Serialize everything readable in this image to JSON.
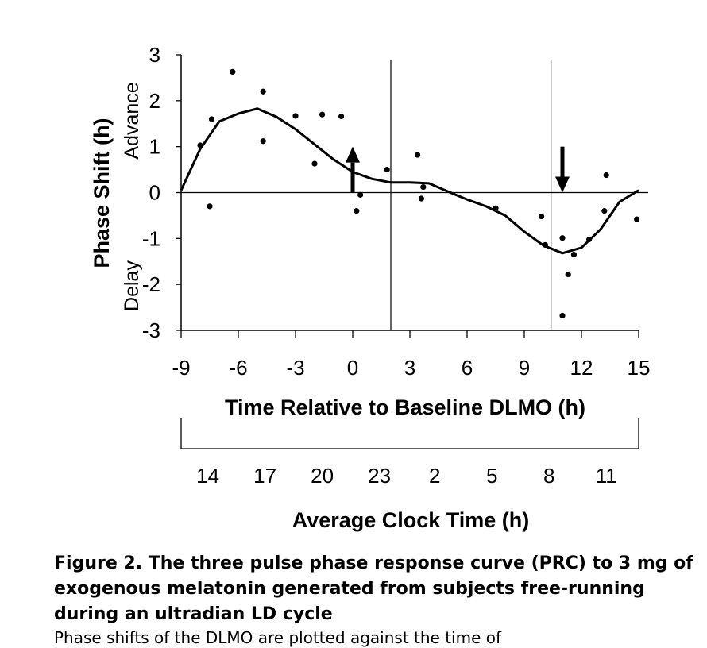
{
  "chart_data": {
    "type": "scatter",
    "xlabel": "Time Relative to Baseline DLMO (h)",
    "ylabel": "Phase Shift (h)",
    "ylabel_upper": "Advance",
    "ylabel_lower": "Delay",
    "secondary_xlabel": "Average Clock Time (h)",
    "xlim": [
      -9,
      15
    ],
    "ylim": [
      -3,
      3
    ],
    "xticks": [
      -9,
      -6,
      -3,
      0,
      3,
      6,
      9,
      12,
      15
    ],
    "yticks": [
      3,
      2,
      1,
      0,
      -1,
      -2,
      -3
    ],
    "secondary_xticks": [
      {
        "label": "14",
        "x": -7.6
      },
      {
        "label": "17",
        "x": -4.6
      },
      {
        "label": "20",
        "x": -1.6
      },
      {
        "label": "23",
        "x": 1.4
      },
      {
        "label": "2",
        "x": 4.3
      },
      {
        "label": "5",
        "x": 7.3
      },
      {
        "label": "8",
        "x": 10.3
      },
      {
        "label": "11",
        "x": 13.3
      }
    ],
    "vertical_lines_x": [
      2.0,
      10.4
    ],
    "arrows": [
      {
        "x": 0.0,
        "direction": "up",
        "from_y": 0.0,
        "to_y": 1.0
      },
      {
        "x": 11.0,
        "direction": "down",
        "from_y": 1.0,
        "to_y": 0.0
      }
    ],
    "points": [
      {
        "x": -8.0,
        "y": 1.03
      },
      {
        "x": -7.4,
        "y": 1.6
      },
      {
        "x": -7.5,
        "y": -0.3
      },
      {
        "x": -6.3,
        "y": 2.63
      },
      {
        "x": -4.7,
        "y": 2.2
      },
      {
        "x": -4.7,
        "y": 1.12
      },
      {
        "x": -3.0,
        "y": 1.67
      },
      {
        "x": -2.0,
        "y": 0.63
      },
      {
        "x": -1.6,
        "y": 1.7
      },
      {
        "x": -0.6,
        "y": 1.66
      },
      {
        "x": 0.2,
        "y": -0.4
      },
      {
        "x": 0.4,
        "y": -0.05
      },
      {
        "x": 1.8,
        "y": 0.5
      },
      {
        "x": 3.4,
        "y": 0.82
      },
      {
        "x": 3.7,
        "y": 0.12
      },
      {
        "x": 3.6,
        "y": -0.13
      },
      {
        "x": 7.5,
        "y": -0.34
      },
      {
        "x": 9.9,
        "y": -0.52
      },
      {
        "x": 10.1,
        "y": -1.14
      },
      {
        "x": 11.0,
        "y": -0.99
      },
      {
        "x": 11.3,
        "y": -1.78
      },
      {
        "x": 11.6,
        "y": -1.35
      },
      {
        "x": 12.4,
        "y": -1.02
      },
      {
        "x": 13.3,
        "y": 0.38
      },
      {
        "x": 13.2,
        "y": -0.4
      },
      {
        "x": 14.9,
        "y": -0.58
      },
      {
        "x": 11.0,
        "y": -2.68
      }
    ],
    "curve": [
      [
        -9,
        0.05
      ],
      [
        -8,
        0.95
      ],
      [
        -7,
        1.55
      ],
      [
        -6,
        1.72
      ],
      [
        -5,
        1.83
      ],
      [
        -4,
        1.65
      ],
      [
        -3,
        1.38
      ],
      [
        -2,
        1.05
      ],
      [
        -1,
        0.72
      ],
      [
        0,
        0.45
      ],
      [
        1,
        0.3
      ],
      [
        2,
        0.22
      ],
      [
        3,
        0.22
      ],
      [
        4,
        0.2
      ],
      [
        5,
        0.02
      ],
      [
        6,
        -0.15
      ],
      [
        7,
        -0.3
      ],
      [
        8,
        -0.5
      ],
      [
        9,
        -0.85
      ],
      [
        10,
        -1.15
      ],
      [
        11,
        -1.32
      ],
      [
        12,
        -1.2
      ],
      [
        13,
        -0.8
      ],
      [
        14,
        -0.2
      ],
      [
        15,
        0.05
      ]
    ]
  },
  "caption": {
    "title": "Figure 2.  The three pulse phase response curve (PRC) to 3 mg of exogenous melatonin generated from subjects free-running during an ultradian LD cycle",
    "subtitle": "Phase shifts of the DLMO are plotted against the time of"
  }
}
